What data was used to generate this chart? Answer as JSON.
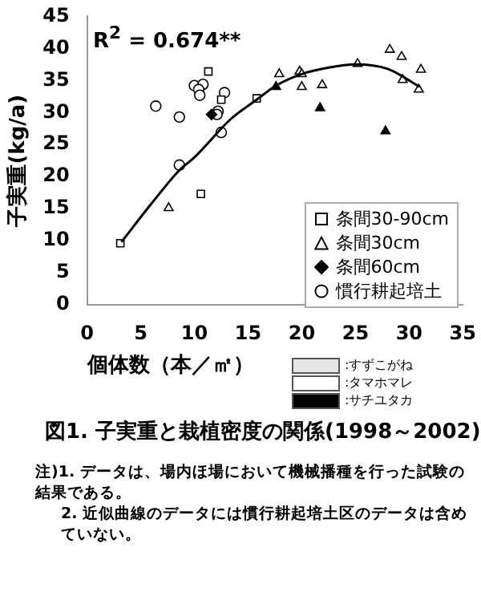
{
  "chart_data": {
    "type": "scatter",
    "title": "図1. 子実重と栽植密度の関係(1998～2002)",
    "xlabel": "個体数（本／㎡）",
    "ylabel": "子実重(kg/a)",
    "xlim": [
      0,
      35
    ],
    "xticks": [
      0,
      5,
      10,
      15,
      20,
      25,
      30,
      35
    ],
    "ylim": [
      0,
      45
    ],
    "yticks": [
      0,
      5,
      10,
      15,
      20,
      25,
      30,
      35,
      40,
      45
    ],
    "grid": false,
    "legend": "bottom right",
    "series": [
      {
        "name": "条間30-90cm",
        "marker": "square",
        "color": "#ffffff",
        "x": [
          3.1,
          11.3,
          10.6,
          12.5,
          15.8
        ],
        "values": [
          9.6,
          36.4,
          17.3,
          32,
          32.2
        ]
      },
      {
        "name": "条間30cm",
        "marker": "triangle",
        "color": "#ffffff",
        "x": [
          7.6,
          17.9,
          19.8,
          20,
          20,
          21.9,
          25.2,
          28.2,
          29.3,
          31.1,
          29.4,
          30.9
        ],
        "values": [
          15.1,
          36,
          36.4,
          36,
          34,
          34.3,
          37.6,
          39.8,
          38.7,
          36.7,
          35.1,
          33.6
        ]
      },
      {
        "name": "条間60cm",
        "marker": "diamond",
        "color": "#000000",
        "x": [
          11.6
        ],
        "values": [
          29.7
        ]
      },
      {
        "name": "慣行耕起培土",
        "marker": "circle",
        "color": "#ffffff",
        "x": [
          6.4,
          8.6,
          8.6,
          10,
          10.8,
          10.4,
          10.5,
          12.8,
          12.2,
          12.1,
          12.5
        ],
        "values": [
          31,
          29.3,
          21.8,
          34.2,
          34.4,
          33.6,
          32.7,
          33.1,
          30.2,
          29.7,
          26.9
        ]
      },
      {
        "marker": "triangle",
        "color": "#000000",
        "x": [
          17.6,
          21.7,
          27.8
        ],
        "values": [
          34,
          30.7,
          27.1
        ]
      },
      {
        "type": "line",
        "marker": "none",
        "color": "#000000",
        "x": [
          3.2,
          6,
          8.6,
          10,
          13.4,
          15.8,
          17.6,
          20,
          22.5,
          25,
          28,
          31
        ],
        "values": [
          9.8,
          15.8,
          21,
          23,
          29,
          32,
          34.2,
          36,
          37,
          37.5,
          36.8,
          34
        ]
      }
    ],
    "annotations": [
      "R$^{2}$ = 0.674**",
      ":すずこがね",
      ":タマホマレ",
      ":サチユタカ",
      "注)1. データは、場内ほ場において機械播種を行った試験の結果である。",
      "2. 近似曲線のデータには慣行耕起培土区のデータは含めていない。"
    ]
  }
}
